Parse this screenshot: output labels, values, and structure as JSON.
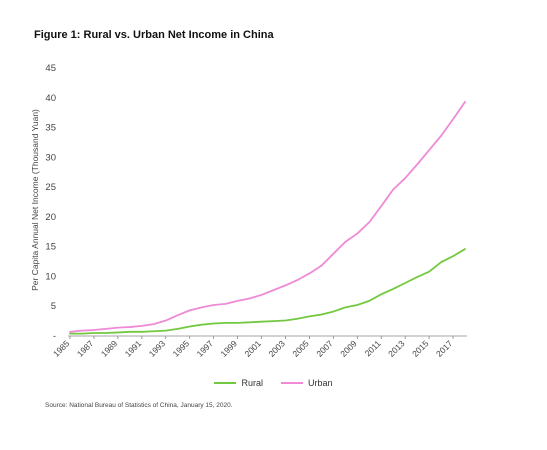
{
  "figure_title": "Figure 1: Rural vs. Urban Net Income in China",
  "source": "Source: National Bureau of Statistics of China, January 15, 2020.",
  "colors": {
    "rural": "#72c940",
    "urban": "#ee8ad6",
    "axis": "#888888",
    "text": "#444444"
  },
  "chart_data": {
    "type": "line",
    "title": "Figure 1: Rural vs. Urban Net Income in China",
    "xlabel": "",
    "ylabel": "Per Capita Annual Net Income (Thousand Yuan)",
    "ylim": [
      0,
      45
    ],
    "yticks": [
      0,
      5,
      10,
      15,
      20,
      25,
      30,
      35,
      40,
      45
    ],
    "ytick_labels": [
      "-",
      "5",
      "10",
      "15",
      "20",
      "25",
      "30",
      "35",
      "40",
      "45"
    ],
    "x": [
      1985,
      1986,
      1987,
      1988,
      1989,
      1990,
      1991,
      1992,
      1993,
      1994,
      1995,
      1996,
      1997,
      1998,
      1999,
      2000,
      2001,
      2002,
      2003,
      2004,
      2005,
      2006,
      2007,
      2008,
      2009,
      2010,
      2011,
      2012,
      2013,
      2014,
      2015,
      2016,
      2017,
      2018
    ],
    "xtick_labels": [
      "1985",
      "1987",
      "1989",
      "1991",
      "1993",
      "1995",
      "1997",
      "1999",
      "2001",
      "2003",
      "2005",
      "2007",
      "2009",
      "2011",
      "2013",
      "2015",
      "2017"
    ],
    "legend_position": "bottom",
    "grid": false,
    "series": [
      {
        "name": "Rural",
        "values": [
          0.4,
          0.4,
          0.5,
          0.5,
          0.6,
          0.7,
          0.7,
          0.8,
          0.9,
          1.2,
          1.6,
          1.9,
          2.1,
          2.2,
          2.2,
          2.3,
          2.4,
          2.5,
          2.6,
          2.9,
          3.3,
          3.6,
          4.1,
          4.8,
          5.2,
          5.9,
          7.0,
          7.9,
          8.9,
          9.9,
          10.8,
          12.4,
          13.4,
          14.6
        ]
      },
      {
        "name": "Urban",
        "values": [
          0.7,
          0.9,
          1.0,
          1.2,
          1.4,
          1.5,
          1.7,
          2.0,
          2.6,
          3.5,
          4.3,
          4.8,
          5.2,
          5.4,
          5.9,
          6.3,
          6.9,
          7.7,
          8.5,
          9.4,
          10.5,
          11.8,
          13.8,
          15.8,
          17.2,
          19.1,
          21.8,
          24.6,
          26.5,
          28.8,
          31.2,
          33.6,
          36.4,
          39.3
        ]
      }
    ]
  }
}
